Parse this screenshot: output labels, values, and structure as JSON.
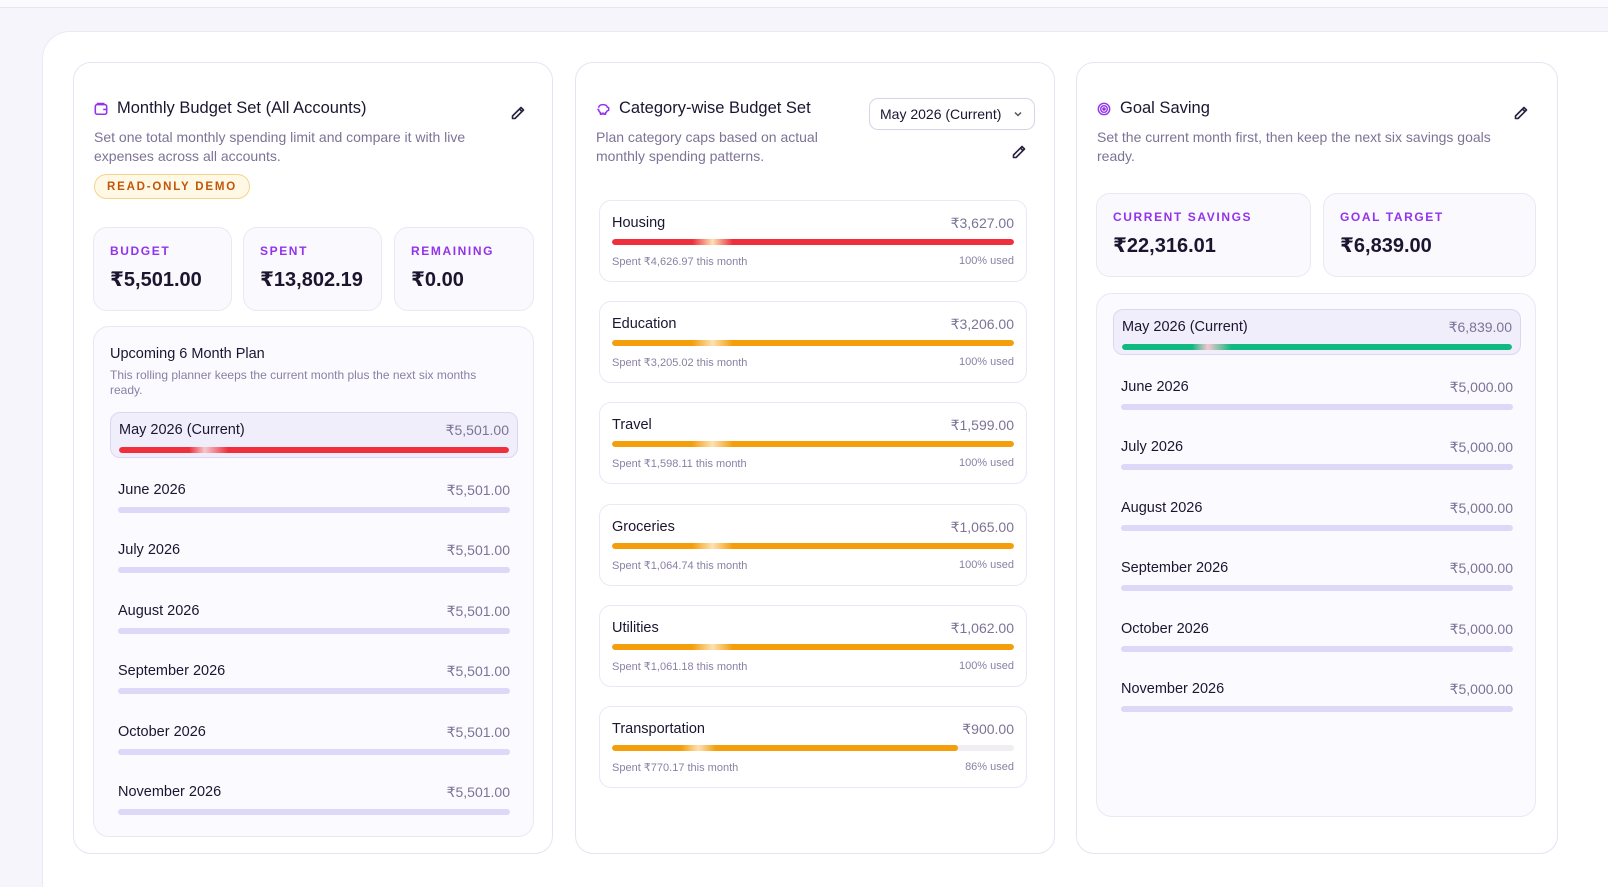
{
  "budget_card": {
    "title": "Monthly Budget Set (All Accounts)",
    "description": "Set one total monthly spending limit and compare it with live expenses across all accounts.",
    "badge": "READ-ONLY DEMO",
    "stats": [
      {
        "label": "BUDGET",
        "value": "₹5,501.00"
      },
      {
        "label": "SPENT",
        "value": "₹13,802.19"
      },
      {
        "label": "REMAINING",
        "value": "₹0.00"
      }
    ],
    "plan": {
      "title": "Upcoming 6 Month Plan",
      "description": "This rolling planner keeps the current month plus the next six months ready.",
      "months": [
        {
          "name": "May 2026 (Current)",
          "amount": "₹5,501.00",
          "current": true,
          "progress": 1.0
        },
        {
          "name": "June 2026",
          "amount": "₹5,501.00",
          "current": false,
          "progress": 0
        },
        {
          "name": "July 2026",
          "amount": "₹5,501.00",
          "current": false,
          "progress": 0
        },
        {
          "name": "August 2026",
          "amount": "₹5,501.00",
          "current": false,
          "progress": 0
        },
        {
          "name": "September 2026",
          "amount": "₹5,501.00",
          "current": false,
          "progress": 0
        },
        {
          "name": "October 2026",
          "amount": "₹5,501.00",
          "current": false,
          "progress": 0
        },
        {
          "name": "November 2026",
          "amount": "₹5,501.00",
          "current": false,
          "progress": 0
        }
      ]
    }
  },
  "category_card": {
    "title": "Category-wise Budget Set",
    "description": "Plan category caps based on actual monthly spending patterns.",
    "month_select": "May 2026 (Current)",
    "categories": [
      {
        "name": "Housing",
        "amount": "₹3,627.00",
        "spent": "Spent ₹4,626.97 this month",
        "used": "100% used",
        "progress": 1.0,
        "color": "#ef2f3c"
      },
      {
        "name": "Education",
        "amount": "₹3,206.00",
        "spent": "Spent ₹3,205.02 this month",
        "used": "100% used",
        "progress": 1.0,
        "color": "#f59e0b"
      },
      {
        "name": "Travel",
        "amount": "₹1,599.00",
        "spent": "Spent ₹1,598.11 this month",
        "used": "100% used",
        "progress": 1.0,
        "color": "#f59e0b"
      },
      {
        "name": "Groceries",
        "amount": "₹1,065.00",
        "spent": "Spent ₹1,064.74 this month",
        "used": "100% used",
        "progress": 1.0,
        "color": "#f59e0b"
      },
      {
        "name": "Utilities",
        "amount": "₹1,062.00",
        "spent": "Spent ₹1,061.18 this month",
        "used": "100% used",
        "progress": 1.0,
        "color": "#f59e0b"
      },
      {
        "name": "Transportation",
        "amount": "₹900.00",
        "spent": "Spent ₹770.17 this month",
        "used": "86% used",
        "progress": 0.86,
        "color": "#f59e0b"
      }
    ]
  },
  "goal_card": {
    "title": "Goal Saving",
    "description": "Set the current month first, then keep the next six savings goals ready.",
    "stats": [
      {
        "label": "CURRENT SAVINGS",
        "value": "₹22,316.01"
      },
      {
        "label": "GOAL TARGET",
        "value": "₹6,839.00"
      }
    ],
    "months": [
      {
        "name": "May 2026 (Current)",
        "amount": "₹6,839.00",
        "current": true,
        "progress": 1.0
      },
      {
        "name": "June 2026",
        "amount": "₹5,000.00",
        "current": false,
        "progress": 0
      },
      {
        "name": "July 2026",
        "amount": "₹5,000.00",
        "current": false,
        "progress": 0
      },
      {
        "name": "August 2026",
        "amount": "₹5,000.00",
        "current": false,
        "progress": 0
      },
      {
        "name": "September 2026",
        "amount": "₹5,000.00",
        "current": false,
        "progress": 0
      },
      {
        "name": "October 2026",
        "amount": "₹5,000.00",
        "current": false,
        "progress": 0
      },
      {
        "name": "November 2026",
        "amount": "₹5,000.00",
        "current": false,
        "progress": 0
      }
    ]
  },
  "colors": {
    "accent": "#9333ea",
    "over_budget": "#ef2f3c",
    "warning": "#f59e0b",
    "goal_met": "#10b981",
    "track": "#ddd8f8"
  },
  "icons": {
    "budget": "wallet-icon",
    "category": "piggy-bank-icon",
    "goal": "target-icon",
    "edit": "pencil-icon",
    "select": "chevron-down-icon"
  }
}
